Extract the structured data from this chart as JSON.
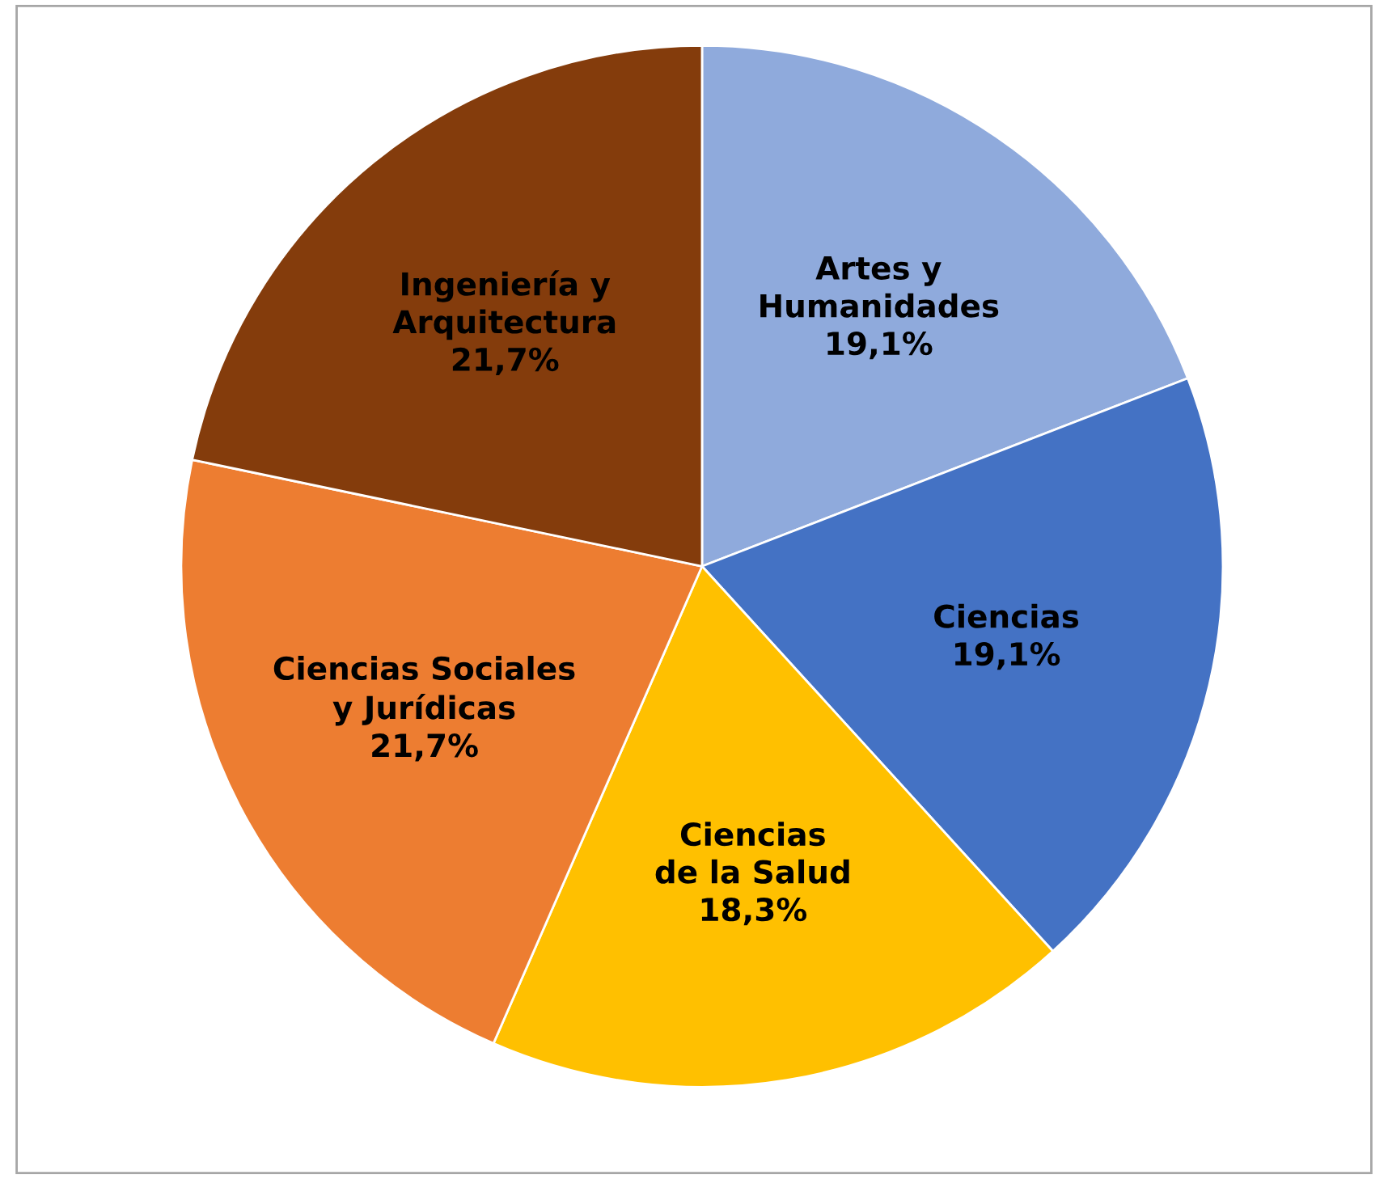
{
  "chart_data": {
    "type": "pie",
    "categories": [
      "Artes y Humanidades",
      "Ciencias",
      "Ciencias de la Salud",
      "Ciencias Sociales y Jurídicas",
      "Ingeniería y Arquitectura"
    ],
    "values": [
      19.1,
      19.1,
      18.3,
      21.7,
      21.7
    ],
    "value_labels": [
      "19,1%",
      "19,1%",
      "18,3%",
      "21,7%",
      "21,7%"
    ],
    "colors": [
      "#8faadc",
      "#4472c4",
      "#ffc000",
      "#ed7d31",
      "#843c0c"
    ],
    "legend": false
  }
}
